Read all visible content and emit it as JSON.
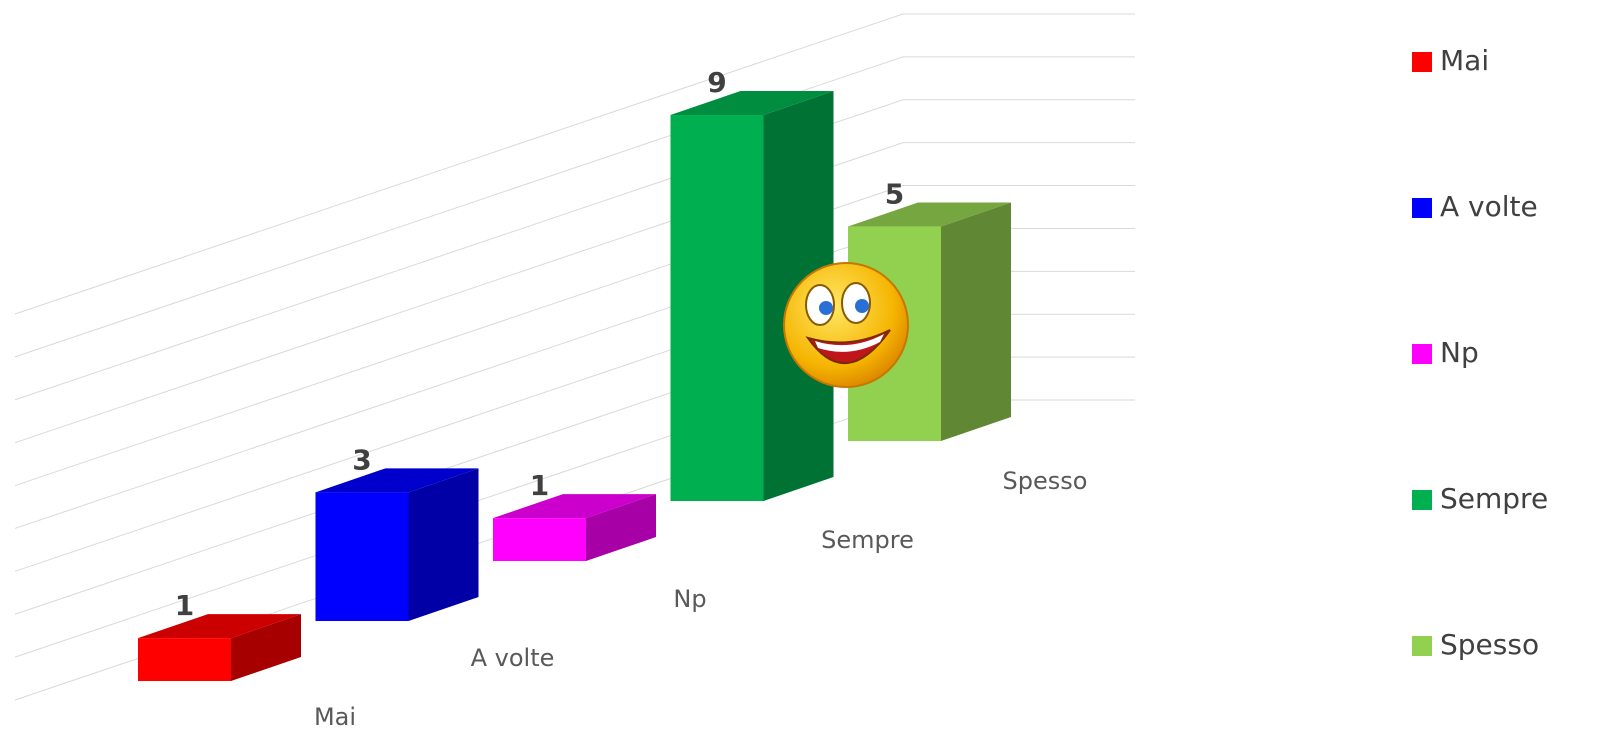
{
  "chart_data": {
    "type": "bar3d",
    "categories": [
      "Mai",
      "A volte",
      "Np",
      "Sempre",
      "Spesso"
    ],
    "values": [
      1,
      3,
      1,
      9,
      5
    ],
    "colors": [
      "#ff0000",
      "#0000ff",
      "#ff00ff",
      "#00b050",
      "#92d050"
    ],
    "ylim": [
      0,
      9
    ],
    "yticks": [
      0,
      1,
      2,
      3,
      4,
      5,
      6,
      7,
      8,
      9
    ],
    "grid": true,
    "legend": "right"
  }
}
